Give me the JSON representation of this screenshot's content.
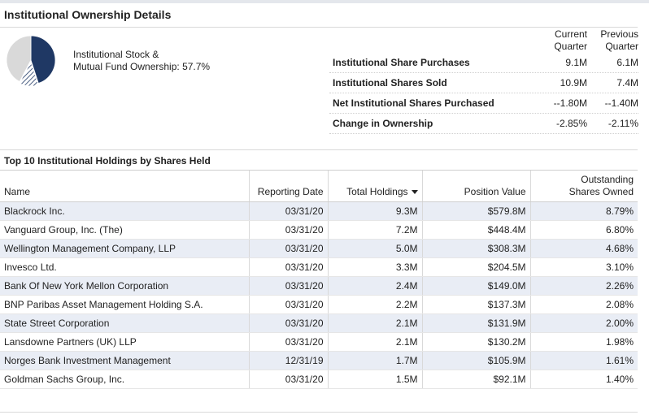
{
  "title": "Institutional Ownership Details",
  "ownership": {
    "label_line1": "Institutional Stock &",
    "label_line2": "Mutual Fund Ownership:",
    "value": "57.7%",
    "percent": 57.7,
    "colors": {
      "main": "#1f3864",
      "hatched": "#ffffff",
      "rest": "#d9d9d9"
    }
  },
  "summary": {
    "col_current_line1": "Current",
    "col_current_line2": "Quarter",
    "col_previous_line1": "Previous",
    "col_previous_line2": "Quarter",
    "rows": [
      {
        "label": "Institutional Share Purchases",
        "current": "9.1M",
        "previous": "6.1M"
      },
      {
        "label": "Institutional Shares Sold",
        "current": "10.9M",
        "previous": "7.4M"
      },
      {
        "label": "Net Institutional Shares Purchased",
        "current": "--1.80M",
        "previous": "--1.40M"
      },
      {
        "label": "Change in Ownership",
        "current": "-2.85%",
        "previous": "-2.11%"
      }
    ]
  },
  "holdings": {
    "title": "Top 10 Institutional Holdings by Shares Held",
    "columns": {
      "name": "Name",
      "date": "Reporting Date",
      "total": "Total Holdings",
      "value": "Position Value",
      "outstanding_line1": "Outstanding",
      "outstanding_line2": "Shares Owned"
    },
    "rows": [
      {
        "name": "Blackrock Inc.",
        "date": "03/31/20",
        "total": "9.3M",
        "value": "$579.8M",
        "pct": "8.79%"
      },
      {
        "name": "Vanguard Group, Inc. (The)",
        "date": "03/31/20",
        "total": "7.2M",
        "value": "$448.4M",
        "pct": "6.80%"
      },
      {
        "name": "Wellington Management Company, LLP",
        "date": "03/31/20",
        "total": "5.0M",
        "value": "$308.3M",
        "pct": "4.68%"
      },
      {
        "name": "Invesco Ltd.",
        "date": "03/31/20",
        "total": "3.3M",
        "value": "$204.5M",
        "pct": "3.10%"
      },
      {
        "name": "Bank Of New York Mellon Corporation",
        "date": "03/31/20",
        "total": "2.4M",
        "value": "$149.0M",
        "pct": "2.26%"
      },
      {
        "name": "BNP Paribas Asset Management Holding S.A.",
        "date": "03/31/20",
        "total": "2.2M",
        "value": "$137.3M",
        "pct": "2.08%"
      },
      {
        "name": "State Street Corporation",
        "date": "03/31/20",
        "total": "2.1M",
        "value": "$131.9M",
        "pct": "2.00%"
      },
      {
        "name": "Lansdowne Partners (UK) LLP",
        "date": "03/31/20",
        "total": "2.1M",
        "value": "$130.2M",
        "pct": "1.98%"
      },
      {
        "name": "Norges Bank Investment Management",
        "date": "12/31/19",
        "total": "1.7M",
        "value": "$105.9M",
        "pct": "1.61%"
      },
      {
        "name": "Goldman Sachs Group, Inc.",
        "date": "03/31/20",
        "total": "1.5M",
        "value": "$92.1M",
        "pct": "1.40%"
      }
    ]
  }
}
